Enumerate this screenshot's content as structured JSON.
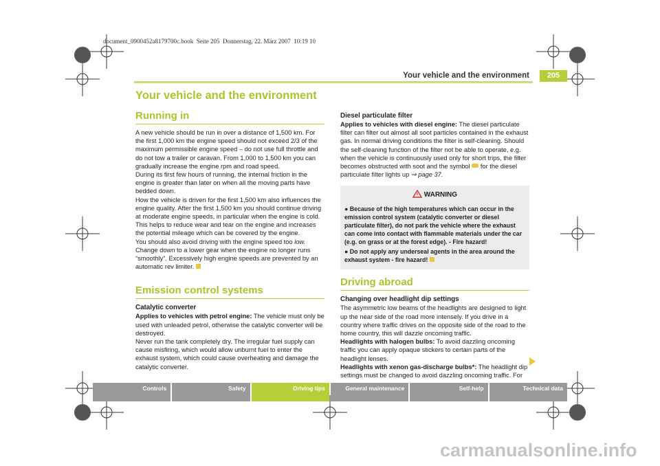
{
  "print_header": "document_0900452a8179700c.book  Seite 205  Donnerstag, 22. März 2007  10:19 10",
  "running_title": "Your vehicle and the environment",
  "page_number": "205",
  "title": "Your vehicle and the environment",
  "running_in": {
    "heading": "Running in",
    "paragraphs": [
      "A new vehicle should be run in over a distance of 1,500 km. For the first 1,000 km the engine speed should not exceed 2/3 of the maximum permissible engine speed – do not use full throttle and do not tow a trailer or caravan. From 1,000 to 1,500 km you can gradually increase the engine rpm and road speed.",
      "During its first few hours of running, the internal friction in the engine is greater than later on when all the moving parts have bedded down.",
      "How the vehicle is driven for the first 1,500 km also influences the engine quality. After the first 1,500 km you should continue driving at moderate engine speeds, in particular when the engine is cold. This helps to reduce wear and tear on the engine and increases the potential mileage which can be covered by the engine."
    ],
    "last_paragraph": {
      "text": "You should also avoid driving with the engine speed too",
      "emphasis": "low.",
      "rest": "Change down to a lower gear when the engine no longer runs “smoothly”. Excessively high engine speeds are prevented by an automatic rev limiter."
    }
  },
  "emission": {
    "heading": "Emission control systems",
    "catalytic": {
      "heading": "Catalytic converter",
      "lead": "Applies to vehicles with petrol engine:",
      "text": "The vehicle must only be used with unleaded petrol, otherwise the catalytic converter will be destroyed.",
      "paragraph": "Never run the tank completely dry. The irregular fuel supply can cause misfiring, which would allow unburnt fuel to enter the exhaust system, which could cause overheating and damage the catalytic converter."
    },
    "diesel": {
      "heading": "Diesel particulate filter",
      "lead": "Applies to vehicles with diesel engine:",
      "text": "The diesel particulate filter can filter out almost all soot particles contained in the exhaust gas. In normal driving conditions the filter is self-cleaning. Should the self-cleaning function of the filter not be able to operate, e.g. when the vehicle is continuously used only for short trips, the filter becomes obstructed with soot and the symbol",
      "text_after": "for the diesel particulate filter lights up",
      "reference": "⇒ page 37."
    },
    "warning": {
      "title": "WARNING",
      "items": [
        "Because of the high temperatures which can occur in the emission control system (catalytic converter or diesel particulate filter), do not park the vehicle where the exhaust can come into contact with flammable materials under the car (e.g. on grass or at the forest edge). - Fire hazard!",
        "Do not apply any underseal agents in the area around the exhaust system - fire hazard!"
      ]
    }
  },
  "driving_abroad": {
    "heading": "Driving abroad",
    "subheading": "Changing over headlight dip settings",
    "paragraph": "The asymmetric low beams of the headlights are designed to light up the near side of the road more intensely. If you drive in a country where traffic drives on the opposite side of the road to the home country, this will dazzle oncoming traffic.",
    "halogen": {
      "lead": "Headlights with halogen bulbs:",
      "text": "To avoid dazzling oncoming traffic you can apply opaque stickers to certain parts of the headlight lenses."
    },
    "xenon": {
      "lead": "Headlights with xenon gas-discharge bulbs*:",
      "text": "The headlight dip settings must be changed to avoid dazzling oncoming traffic. For"
    }
  },
  "tabs": [
    "Controls",
    "Safety",
    "Driving tips",
    "General maintenance",
    "Self-help",
    "Technical data"
  ],
  "active_tab": 2,
  "watermark": "carmanualsonline.info"
}
